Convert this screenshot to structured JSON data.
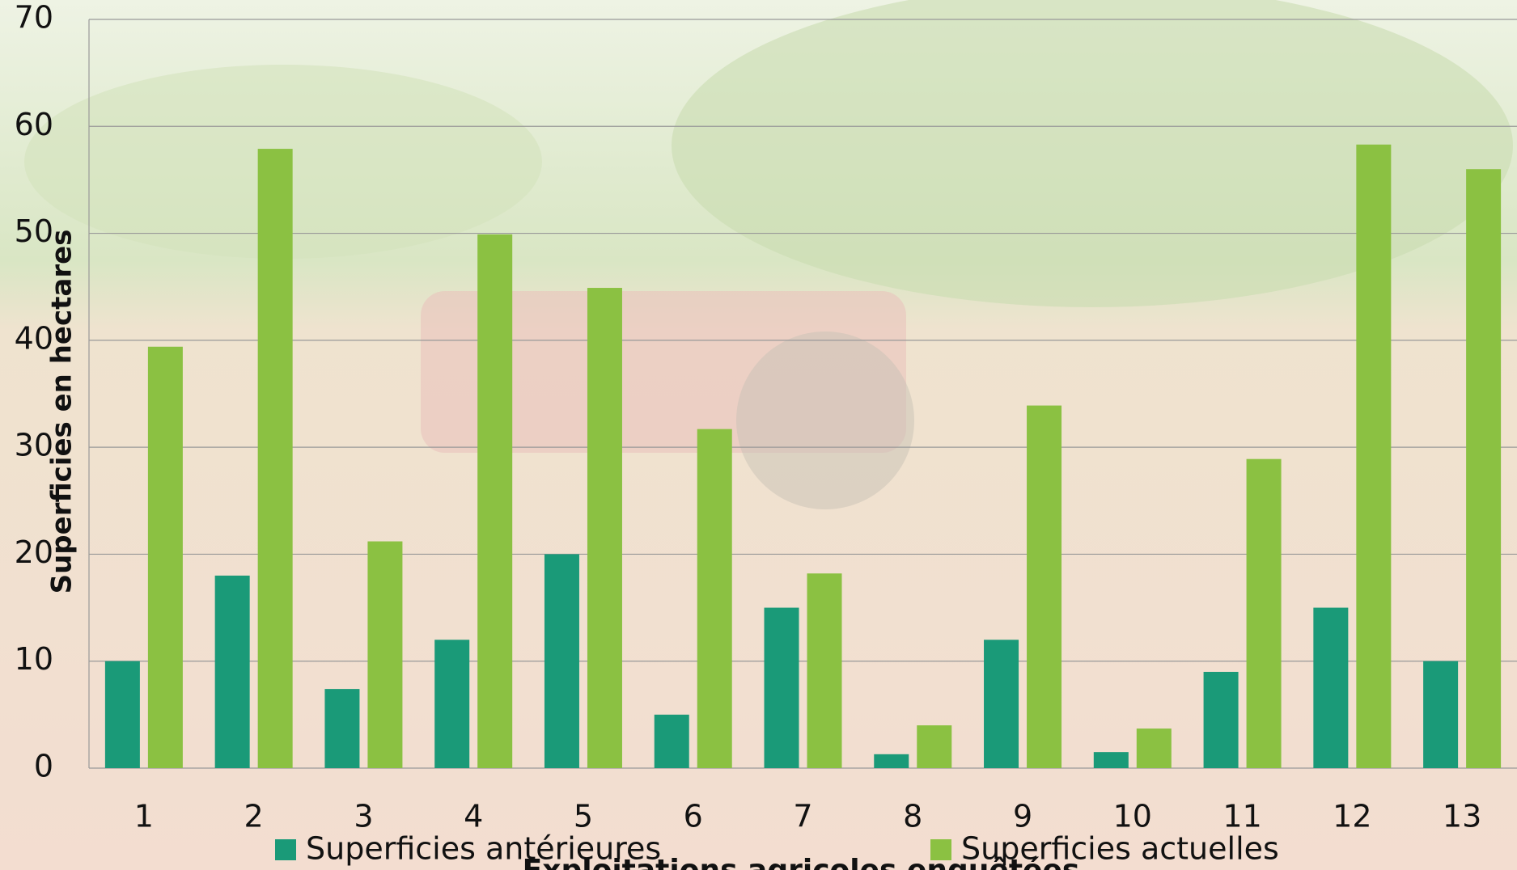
{
  "chart_data": {
    "type": "bar",
    "categories": [
      "1",
      "2",
      "3",
      "4",
      "5",
      "6",
      "7",
      "8",
      "9",
      "10",
      "11",
      "12",
      "13"
    ],
    "series": [
      {
        "name": "Superficies antérieures",
        "color": "#1a9a78",
        "values": [
          10,
          18,
          7.4,
          12,
          20,
          5,
          15,
          1.3,
          12,
          1.5,
          9,
          15,
          10
        ]
      },
      {
        "name": "Superficies actuelles",
        "color": "#8bc142",
        "values": [
          39.4,
          57.9,
          21.2,
          49.9,
          44.9,
          31.7,
          18.2,
          4,
          33.9,
          3.7,
          28.9,
          58.3,
          56
        ]
      }
    ],
    "ylabel": "Superficies en hectares",
    "xlabel": "Exploitations agricoles enquêtées",
    "ylim": [
      0,
      70
    ],
    "yticks": [
      0,
      10,
      20,
      30,
      40,
      50,
      60,
      70
    ],
    "grid": true,
    "legend": "bottom"
  }
}
